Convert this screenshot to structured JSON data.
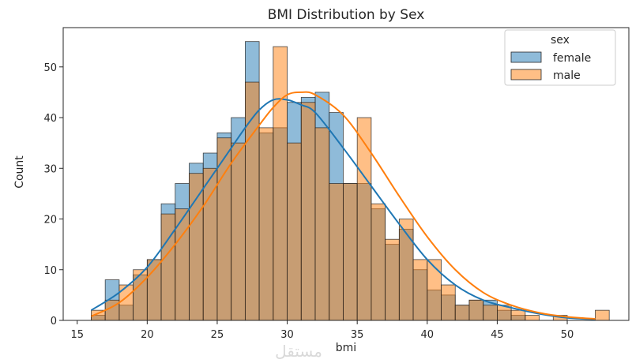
{
  "chart_data": {
    "type": "histogram",
    "title": "BMI Distribution by Sex",
    "xlabel": "bmi",
    "ylabel": "Count",
    "xlim": [
      14.0,
      54.4
    ],
    "ylim": [
      0,
      57.75
    ],
    "xticks": [
      15,
      20,
      25,
      30,
      35,
      40,
      45,
      50
    ],
    "yticks": [
      0,
      10,
      20,
      30,
      40,
      50
    ],
    "bin_start": 16.0,
    "bin_width": 1.0,
    "legend": {
      "title": "sex",
      "position": "top-right"
    },
    "series": [
      {
        "name": "female",
        "color": "#1f77b4",
        "bar_fill": "rgba(31,119,180,0.5)",
        "counts": [
          1,
          8,
          3,
          9,
          12,
          23,
          27,
          31,
          33,
          37,
          40,
          55,
          37,
          38,
          43,
          44,
          45,
          41,
          27,
          27,
          22,
          15,
          18,
          10,
          6,
          5,
          3,
          4,
          4,
          2,
          1,
          0,
          0,
          0,
          0,
          0,
          0
        ],
        "kde_x": [
          16,
          18,
          20,
          22,
          24,
          26,
          27,
          28,
          29,
          30,
          31,
          32,
          34,
          36,
          38,
          40,
          42,
          44,
          46,
          48,
          50,
          52
        ],
        "kde_y": [
          2,
          5.5,
          10.5,
          18,
          26,
          34,
          38,
          41.5,
          43.5,
          43.5,
          42.5,
          41,
          34,
          26.5,
          19,
          12,
          7,
          4,
          2.5,
          1.3,
          0.5,
          0.2
        ]
      },
      {
        "name": "male",
        "color": "#ff7f0e",
        "bar_fill": "rgba(255,127,14,0.5)",
        "counts": [
          2,
          4,
          7,
          10,
          12,
          21,
          22,
          29,
          30,
          36,
          35,
          47,
          38,
          54,
          35,
          43,
          38,
          27,
          27,
          40,
          23,
          16,
          20,
          12,
          12,
          7,
          3,
          4,
          3,
          3,
          2,
          1,
          0,
          1,
          0,
          0,
          2
        ],
        "kde_x": [
          16,
          18,
          20,
          22,
          24,
          26,
          28,
          29,
          30,
          31,
          32,
          34,
          36,
          38,
          40,
          42,
          44,
          46,
          48,
          50,
          52
        ],
        "kde_y": [
          0.8,
          3.5,
          8.5,
          15,
          22.5,
          31,
          38.5,
          42,
          44.5,
          45,
          44.5,
          40.5,
          33,
          24.5,
          16.5,
          10,
          5.5,
          3,
          1.5,
          0.7,
          0.3
        ]
      }
    ]
  },
  "watermark": "مستقل"
}
